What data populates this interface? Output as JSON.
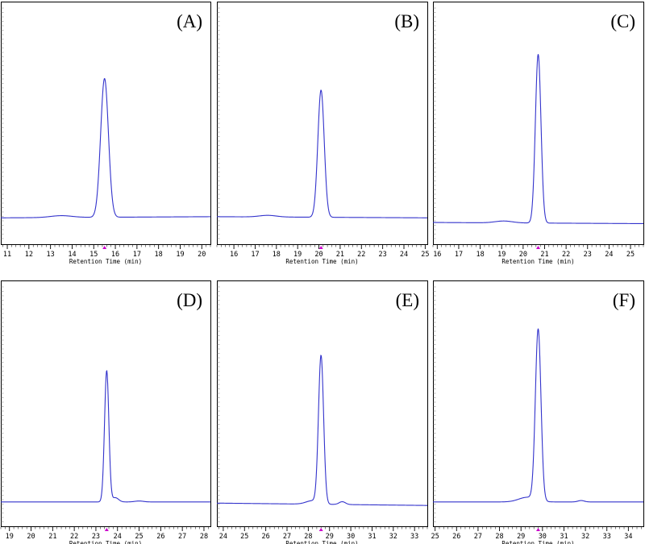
{
  "chart_data": [
    {
      "type": "line",
      "panel_label": "(A)",
      "xlabel": "Retention Time (min)",
      "xlim": [
        10.7,
        20.4
      ],
      "ylim": [
        0,
        100
      ],
      "xticks": [
        11,
        12,
        13,
        14,
        15,
        16,
        17,
        18,
        19,
        20
      ],
      "baseline": [
        10,
        10.5
      ],
      "peaks": [
        {
          "x": 15.5,
          "height": 60,
          "width": 0.18
        },
        {
          "x": 13.5,
          "height": 0.8,
          "width": 0.5
        }
      ],
      "marker_x": 15.5,
      "line_color": "#3333cc",
      "marker_color": "#cc00cc"
    },
    {
      "type": "line",
      "panel_label": "(B)",
      "xlabel": "Retention Time (min)",
      "xlim": [
        15.2,
        25.1
      ],
      "ylim": [
        0,
        100
      ],
      "xticks": [
        16,
        17,
        18,
        19,
        20,
        21,
        22,
        23,
        24,
        25
      ],
      "baseline": [
        10.5,
        10
      ],
      "peaks": [
        {
          "x": 20.1,
          "height": 55,
          "width": 0.15
        },
        {
          "x": 17.6,
          "height": 0.7,
          "width": 0.4
        }
      ],
      "marker_x": 20.1,
      "line_color": "#3333cc",
      "marker_color": "#cc00cc"
    },
    {
      "type": "line",
      "panel_label": "(C)",
      "xlabel": "Retention Time (min)",
      "xlim": [
        15.8,
        25.6
      ],
      "ylim": [
        0,
        100
      ],
      "xticks": [
        16,
        17,
        18,
        19,
        20,
        21,
        22,
        23,
        24,
        25
      ],
      "baseline": [
        8,
        7.5
      ],
      "peaks": [
        {
          "x": 20.7,
          "height": 73,
          "width": 0.13
        },
        {
          "x": 19.1,
          "height": 0.8,
          "width": 0.4
        }
      ],
      "marker_x": 20.7,
      "line_color": "#3333cc",
      "marker_color": "#cc00cc"
    },
    {
      "type": "line",
      "panel_label": "(D)",
      "xlabel": "Retention Time (min)",
      "xlim": [
        18.6,
        28.3
      ],
      "ylim": [
        0,
        100
      ],
      "xticks": [
        19,
        20,
        21,
        22,
        23,
        24,
        25,
        26,
        27,
        28
      ],
      "baseline": [
        9,
        9
      ],
      "peaks": [
        {
          "x": 23.5,
          "height": 56,
          "width": 0.1
        },
        {
          "x": 23.9,
          "height": 1.8,
          "width": 0.15
        },
        {
          "x": 25.0,
          "height": 0.4,
          "width": 0.2
        }
      ],
      "marker_x": 23.5,
      "line_color": "#3333cc",
      "marker_color": "#cc00cc"
    },
    {
      "type": "line",
      "panel_label": "(E)",
      "xlabel": "Retention Time (min)",
      "xlim": [
        23.7,
        33.6
      ],
      "ylim": [
        0,
        100
      ],
      "xticks": [
        24,
        25,
        26,
        27,
        28,
        29,
        30,
        31,
        32,
        33
      ],
      "baseline": [
        8.5,
        7.5
      ],
      "peaks": [
        {
          "x": 28.6,
          "height": 63,
          "width": 0.12
        },
        {
          "x": 28.2,
          "height": 1.5,
          "width": 0.3
        },
        {
          "x": 29.6,
          "height": 1.2,
          "width": 0.15
        }
      ],
      "marker_x": 28.6,
      "line_color": "#3333cc",
      "marker_color": "#cc00cc"
    },
    {
      "type": "line",
      "panel_label": "(F)",
      "xlabel": "Retention Time (min)",
      "xlim": [
        24.9,
        34.7
      ],
      "ylim": [
        0,
        100
      ],
      "xticks": [
        25,
        26,
        27,
        28,
        29,
        30,
        31,
        32,
        33,
        34
      ],
      "baseline": [
        9,
        9
      ],
      "peaks": [
        {
          "x": 29.8,
          "height": 73,
          "width": 0.13
        },
        {
          "x": 29.3,
          "height": 2,
          "width": 0.4
        },
        {
          "x": 31.8,
          "height": 0.6,
          "width": 0.15
        }
      ],
      "marker_x": 29.8,
      "line_color": "#3333cc",
      "marker_color": "#cc00cc"
    }
  ]
}
